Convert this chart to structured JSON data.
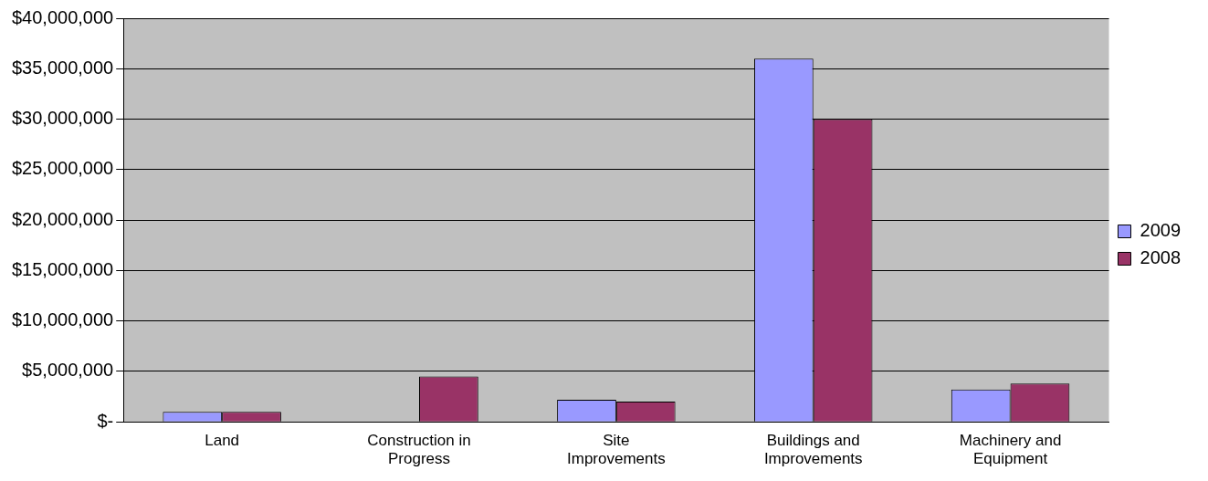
{
  "chart_data": {
    "type": "bar",
    "categories": [
      "Land",
      "Construction in Progress",
      "Site Improvements",
      "Buildings and Improvements",
      "Machinery and Equipment"
    ],
    "series": [
      {
        "name": "2009",
        "color": "#9999ff",
        "values": [
          1000000,
          0,
          2200000,
          36000000,
          3200000
        ]
      },
      {
        "name": "2008",
        "color": "#993366",
        "values": [
          1000000,
          4500000,
          2000000,
          30000000,
          3800000
        ]
      }
    ],
    "ylim": [
      0,
      40000000
    ],
    "yticks": [
      {
        "value": 0,
        "label": "$-"
      },
      {
        "value": 5000000,
        "label": "$5,000,000"
      },
      {
        "value": 10000000,
        "label": "$10,000,000"
      },
      {
        "value": 15000000,
        "label": "$15,000,000"
      },
      {
        "value": 20000000,
        "label": "$20,000,000"
      },
      {
        "value": 25000000,
        "label": "$25,000,000"
      },
      {
        "value": 30000000,
        "label": "$30,000,000"
      },
      {
        "value": 35000000,
        "label": "$35,000,000"
      },
      {
        "value": 40000000,
        "label": "$40,000,000"
      }
    ],
    "grid": "y",
    "legend": "right"
  }
}
